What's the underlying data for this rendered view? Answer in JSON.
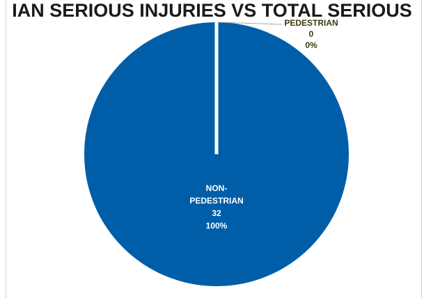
{
  "chart_data": {
    "type": "pie",
    "title": "IAN SERIOUS INJURIES VS TOTAL SERIOUS",
    "slices": [
      {
        "label_lines": [
          "PEDESTRIAN"
        ],
        "value": 0,
        "percent": "0%",
        "color": "#d9d9d9",
        "label_color": "#3d3a0f"
      },
      {
        "label_lines": [
          "NON-",
          "PEDESTRIAN"
        ],
        "value": 32,
        "percent": "100%",
        "color": "#005ea8",
        "label_color": "#ffffff"
      }
    ]
  }
}
